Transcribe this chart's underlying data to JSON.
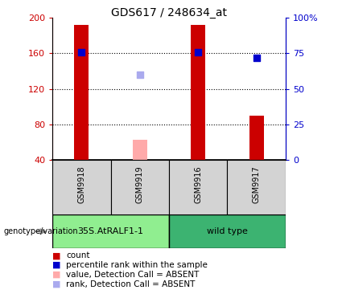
{
  "title": "GDS617 / 248634_at",
  "samples": [
    "GSM9918",
    "GSM9919",
    "GSM9916",
    "GSM9917"
  ],
  "groups": [
    {
      "label": "35S.AtRALF1-1",
      "samples": [
        0,
        1
      ],
      "color": "#90ee90"
    },
    {
      "label": "wild type",
      "samples": [
        2,
        3
      ],
      "color": "#3cb371"
    }
  ],
  "count_values": [
    192,
    null,
    192,
    90
  ],
  "count_absent": [
    null,
    63,
    null,
    null
  ],
  "percentile_values": [
    76,
    null,
    76,
    72
  ],
  "percentile_absent": [
    null,
    60,
    null,
    null
  ],
  "ylim_left": [
    40,
    200
  ],
  "ylim_right": [
    0,
    100
  ],
  "left_ticks": [
    40,
    80,
    120,
    160,
    200
  ],
  "right_ticks": [
    0,
    25,
    50,
    75,
    100
  ],
  "right_tick_labels": [
    "0",
    "25",
    "50",
    "75",
    "100%"
  ],
  "bar_color": "#cc0000",
  "bar_absent_color": "#ffaaaa",
  "dot_color": "#0000cc",
  "dot_absent_color": "#aaaaee",
  "bar_width": 0.25,
  "dot_size": 30,
  "grid_lines": [
    80,
    120,
    160
  ],
  "legend_items": [
    {
      "color": "#cc0000",
      "label": "count"
    },
    {
      "color": "#0000cc",
      "label": "percentile rank within the sample"
    },
    {
      "color": "#ffaaaa",
      "label": "value, Detection Call = ABSENT"
    },
    {
      "color": "#aaaaee",
      "label": "rank, Detection Call = ABSENT"
    }
  ],
  "axis_label_color_left": "#cc0000",
  "axis_label_color_right": "#0000cc",
  "genotype_label": "genotype/variation"
}
